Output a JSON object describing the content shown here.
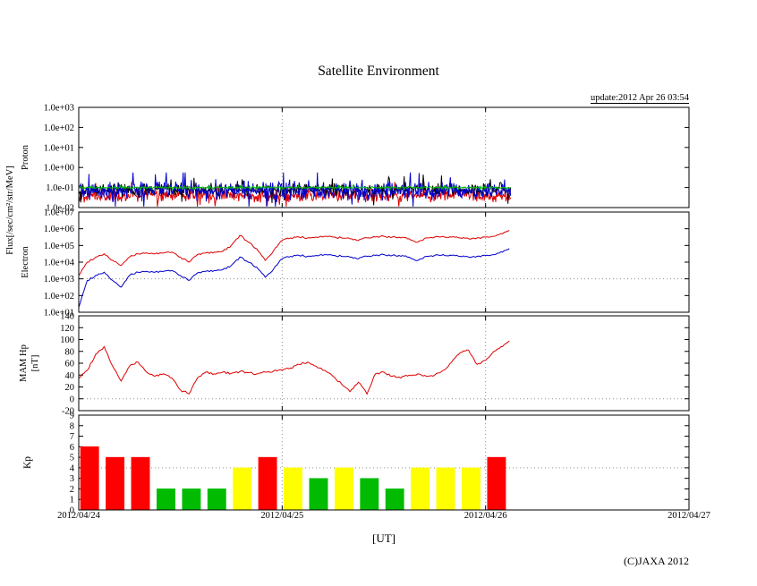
{
  "title": "Satellite Environment",
  "update_text": "update:2012 Apr 26 03:54",
  "copyright": "(C)JAXA 2012",
  "axis_labels": {
    "flux": "Flux[/sec/cm²/str/MeV]",
    "proton": "Proton",
    "electron": "Electron",
    "mam": "MAM Hp",
    "nt": "[nT]",
    "kp": "Kp"
  },
  "x_axis": {
    "label": "[UT]",
    "hours": 72,
    "tick_hours": [
      0,
      24,
      48,
      72
    ],
    "grid_hours": [
      24,
      48
    ],
    "tick_labels": [
      "2012/04/24",
      "2012/04/25",
      "2012/04/26",
      "2012/04/27"
    ]
  },
  "chart_data": [
    {
      "name": "proton",
      "type": "line",
      "yscale": "log",
      "ylabel": "Proton",
      "ylim_log10": [
        -2,
        3
      ],
      "yticks": [
        {
          "label": "1.0e+03",
          "v": 3
        },
        {
          "label": "1.0e+02",
          "v": 2
        },
        {
          "label": "1.0e+01",
          "v": 1
        },
        {
          "label": "1.0e+00",
          "v": 0
        },
        {
          "label": "1.0e-01",
          "v": -1
        },
        {
          "label": "1.0e-02",
          "v": -2
        }
      ],
      "hgrid": [],
      "data_end_hour": 51,
      "series": [
        {
          "name": "proton-red",
          "color": "#dd0000",
          "base_log10": -1.4,
          "noise_log10": 0.3,
          "seed": 17
        },
        {
          "name": "proton-black",
          "color": "#000000",
          "base_log10": -1.1,
          "noise_log10": 0.28,
          "seed": 29
        },
        {
          "name": "proton-blue",
          "color": "#0000cc",
          "base_log10": -1.15,
          "noise_log10": 0.45,
          "seed": 41
        },
        {
          "name": "proton-green",
          "color": "#00bb00",
          "base_log10": -1.0,
          "noise_log10": 0.05,
          "seed": 53
        }
      ]
    },
    {
      "name": "electron",
      "type": "line",
      "yscale": "log",
      "ylabel": "Electron",
      "ylim_log10": [
        1,
        7
      ],
      "yticks": [
        {
          "label": "1.0e+07",
          "v": 7
        },
        {
          "label": "1.0e+06",
          "v": 6
        },
        {
          "label": "1.0e+05",
          "v": 5
        },
        {
          "label": "1.0e+04",
          "v": 4
        },
        {
          "label": "1.0e+03",
          "v": 3
        },
        {
          "label": "1.0e+02",
          "v": 2
        },
        {
          "label": "1.0e+01",
          "v": 1
        }
      ],
      "hgrid": [
        3
      ],
      "sample_hours": 1,
      "series": [
        {
          "name": "electron-red",
          "color": "#dd0000",
          "log10_values": [
            3.2,
            4.0,
            4.3,
            4.5,
            4.1,
            3.8,
            4.3,
            4.5,
            4.55,
            4.5,
            4.55,
            4.6,
            4.3,
            4.0,
            4.45,
            4.55,
            4.6,
            4.65,
            5.0,
            5.6,
            5.2,
            4.8,
            4.1,
            4.7,
            5.3,
            5.45,
            5.5,
            5.45,
            5.5,
            5.55,
            5.5,
            5.45,
            5.4,
            5.3,
            5.45,
            5.5,
            5.55,
            5.5,
            5.45,
            5.4,
            5.2,
            5.45,
            5.5,
            5.55,
            5.5,
            5.45,
            5.4,
            5.45,
            5.5,
            5.55,
            5.7,
            5.95
          ]
        },
        {
          "name": "electron-blue",
          "color": "#0000cc",
          "log10_values": [
            1.3,
            2.9,
            3.2,
            3.4,
            2.9,
            2.5,
            3.2,
            3.4,
            3.45,
            3.4,
            3.45,
            3.5,
            3.2,
            2.9,
            3.35,
            3.45,
            3.5,
            3.55,
            3.8,
            4.3,
            4.0,
            3.7,
            3.1,
            3.6,
            4.2,
            4.35,
            4.4,
            4.35,
            4.4,
            4.45,
            4.4,
            4.35,
            4.3,
            4.2,
            4.35,
            4.4,
            4.45,
            4.4,
            4.35,
            4.3,
            4.1,
            4.35,
            4.4,
            4.45,
            4.4,
            4.35,
            4.3,
            4.35,
            4.4,
            4.45,
            4.6,
            4.85
          ]
        }
      ]
    },
    {
      "name": "mam-hp",
      "type": "line",
      "yscale": "linear",
      "ylabel": "MAM Hp [nT]",
      "ylim": [
        -20,
        140
      ],
      "yticks": [
        {
          "label": "140",
          "v": 140
        },
        {
          "label": "120",
          "v": 120
        },
        {
          "label": "100",
          "v": 100
        },
        {
          "label": "80",
          "v": 80
        },
        {
          "label": "60",
          "v": 60
        },
        {
          "label": "40",
          "v": 40
        },
        {
          "label": "20",
          "v": 20
        },
        {
          "label": "0",
          "v": 0
        },
        {
          "label": "-20",
          "v": -20
        }
      ],
      "hgrid": [
        0
      ],
      "sample_hours": 1,
      "series": [
        {
          "name": "hp",
          "color": "#dd0000",
          "values": [
            35,
            48,
            75,
            88,
            55,
            30,
            55,
            62,
            45,
            38,
            42,
            35,
            15,
            8,
            35,
            45,
            42,
            45,
            43,
            46,
            44,
            42,
            45,
            47,
            48,
            52,
            58,
            62,
            55,
            48,
            38,
            25,
            12,
            28,
            8,
            42,
            45,
            38,
            35,
            40,
            42,
            38,
            40,
            48,
            62,
            78,
            82,
            58,
            65,
            80,
            88,
            100
          ]
        }
      ]
    },
    {
      "name": "kp",
      "type": "bar",
      "yscale": "linear",
      "ylabel": "Kp",
      "ylim": [
        0,
        9
      ],
      "yticks": [
        {
          "label": "9",
          "v": 9
        },
        {
          "label": "8",
          "v": 8
        },
        {
          "label": "7",
          "v": 7
        },
        {
          "label": "6",
          "v": 6
        },
        {
          "label": "5",
          "v": 5
        },
        {
          "label": "4",
          "v": 4
        },
        {
          "label": "3",
          "v": 3
        },
        {
          "label": "2",
          "v": 2
        },
        {
          "label": "1",
          "v": 1
        },
        {
          "label": "0",
          "v": 0
        }
      ],
      "hgrid": [
        4
      ],
      "bar_hours": 3,
      "bars": [
        {
          "v": 6,
          "color": "#ff0000"
        },
        {
          "v": 5,
          "color": "#ff0000"
        },
        {
          "v": 5,
          "color": "#ff0000"
        },
        {
          "v": 2,
          "color": "#00bb00"
        },
        {
          "v": 2,
          "color": "#00bb00"
        },
        {
          "v": 2,
          "color": "#00bb00"
        },
        {
          "v": 4,
          "color": "#ffff00"
        },
        {
          "v": 5,
          "color": "#ff0000"
        },
        {
          "v": 4,
          "color": "#ffff00"
        },
        {
          "v": 3,
          "color": "#00bb00"
        },
        {
          "v": 4,
          "color": "#ffff00"
        },
        {
          "v": 3,
          "color": "#00bb00"
        },
        {
          "v": 2,
          "color": "#00bb00"
        },
        {
          "v": 4,
          "color": "#ffff00"
        },
        {
          "v": 4,
          "color": "#ffff00"
        },
        {
          "v": 4,
          "color": "#ffff00"
        },
        {
          "v": 5,
          "color": "#ff0000"
        }
      ]
    }
  ]
}
